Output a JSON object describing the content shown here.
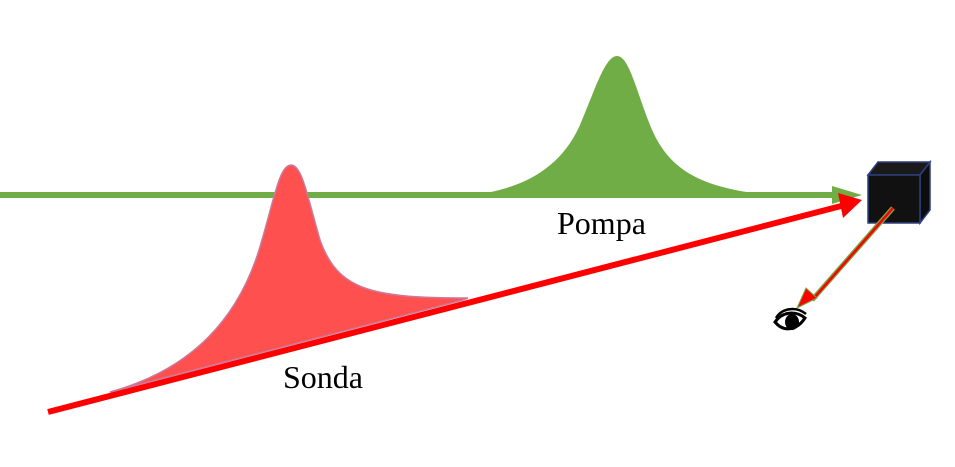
{
  "diagram": {
    "pump": {
      "label": "Pompa",
      "color": "#70ad47"
    },
    "probe": {
      "label": "Sonda",
      "color": "#ff5050",
      "beam_color": "#ff0000"
    },
    "sample": {
      "icon": "sample-cube-icon",
      "color": "#111111",
      "edge_color": "#2f3f7f"
    },
    "detector": {
      "icon": "eye-icon"
    },
    "signal": {
      "color": "#ff0000",
      "outline": "#70ad47"
    }
  }
}
